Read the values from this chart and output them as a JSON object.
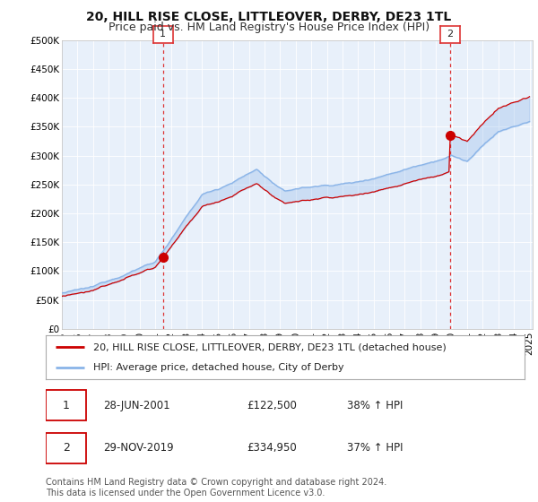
{
  "title": "20, HILL RISE CLOSE, LITTLEOVER, DERBY, DE23 1TL",
  "subtitle": "Price paid vs. HM Land Registry's House Price Index (HPI)",
  "ylim": [
    0,
    500000
  ],
  "yticks": [
    0,
    50000,
    100000,
    150000,
    200000,
    250000,
    300000,
    350000,
    400000,
    450000,
    500000
  ],
  "ytick_labels": [
    "£0",
    "£50K",
    "£100K",
    "£150K",
    "£200K",
    "£250K",
    "£300K",
    "£350K",
    "£400K",
    "£450K",
    "£500K"
  ],
  "hpi_color": "#8ab4e8",
  "price_color": "#cc0000",
  "fill_color": "#dce9f7",
  "marker_color": "#cc0000",
  "vline_color": "#dd3333",
  "background_color": "#ffffff",
  "plot_bg_color": "#e8f0fa",
  "grid_color": "#ffffff",
  "transaction1_year": 2001.49,
  "transaction1_price": 122500,
  "transaction2_year": 2019.91,
  "transaction2_price": 334950,
  "legend_line1": "20, HILL RISE CLOSE, LITTLEOVER, DERBY, DE23 1TL (detached house)",
  "legend_line2": "HPI: Average price, detached house, City of Derby",
  "table_row1": [
    "1",
    "28-JUN-2001",
    "£122,500",
    "38% ↑ HPI"
  ],
  "table_row2": [
    "2",
    "29-NOV-2019",
    "£334,950",
    "37% ↑ HPI"
  ],
  "footer": "Contains HM Land Registry data © Crown copyright and database right 2024.\nThis data is licensed under the Open Government Licence v3.0.",
  "title_fontsize": 10,
  "subtitle_fontsize": 9,
  "tick_fontsize": 7.5,
  "legend_fontsize": 8,
  "table_fontsize": 8.5,
  "footer_fontsize": 7
}
